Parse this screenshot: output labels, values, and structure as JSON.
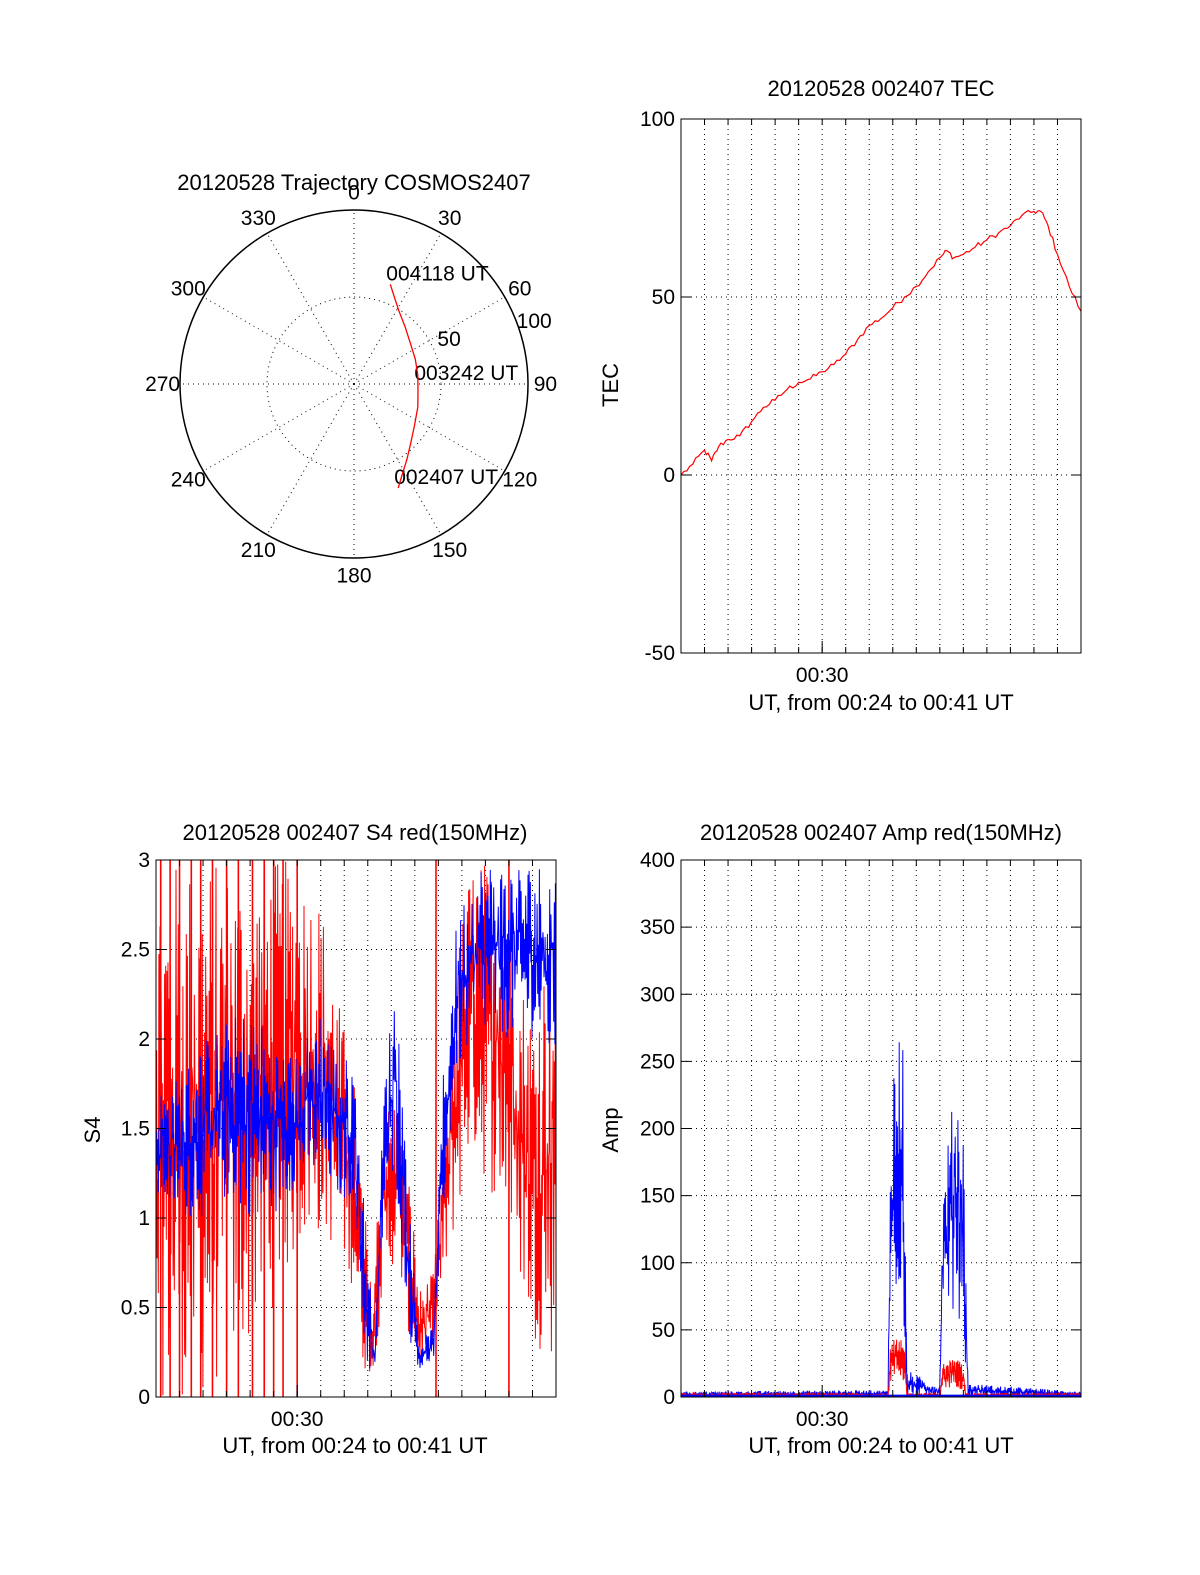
{
  "chart_data": [
    {
      "id": "trajectory",
      "type": "polar",
      "title": "20120528 Trajectory COSMOS2407",
      "angle_labels": [
        "0",
        "30",
        "60",
        "90",
        "120",
        "150",
        "180",
        "210",
        "240",
        "270",
        "300",
        "330"
      ],
      "radial_labels": [
        "50",
        "100"
      ],
      "rmax": 100,
      "grid": true,
      "series": [
        {
          "color": "#ff0000",
          "points": [
            {
              "az": 20,
              "r": 61
            },
            {
              "az": 25,
              "r": 55
            },
            {
              "az": 32,
              "r": 49
            },
            {
              "az": 42,
              "r": 44
            },
            {
              "az": 54,
              "r": 40
            },
            {
              "az": 68,
              "r": 38
            },
            {
              "az": 82,
              "r": 37
            },
            {
              "az": 96,
              "r": 37
            },
            {
              "az": 110,
              "r": 39
            },
            {
              "az": 124,
              "r": 42
            },
            {
              "az": 136,
              "r": 47
            },
            {
              "az": 145,
              "r": 53
            },
            {
              "az": 152,
              "r": 59
            },
            {
              "az": 157,
              "r": 65
            }
          ]
        }
      ],
      "annotations": [
        {
          "text": "004118 UT",
          "az": 20,
          "r": 61
        },
        {
          "text": "003242 UT",
          "az": 90,
          "r": 37
        },
        {
          "text": "002407 UT",
          "az": 157,
          "r": 65
        }
      ]
    },
    {
      "id": "tec",
      "type": "line",
      "title": "20120528 002407 TEC",
      "xlabel": "UT, from 00:24 to 00:41 UT",
      "ylabel": "TEC",
      "xlim": [
        0,
        17
      ],
      "ylim": [
        -50,
        100
      ],
      "yticks": [
        "-50",
        "0",
        "50",
        "100"
      ],
      "xticks": [
        {
          "label": "00:30",
          "value": 6
        }
      ],
      "grid": true,
      "series": [
        {
          "color": "#ff0000",
          "points": [
            [
              0,
              0
            ],
            [
              0.5,
              3
            ],
            [
              1,
              7
            ],
            [
              1.3,
              4
            ],
            [
              1.6,
              8
            ],
            [
              2,
              10
            ],
            [
              2.5,
              11
            ],
            [
              3,
              15
            ],
            [
              3.5,
              19
            ],
            [
              4,
              21
            ],
            [
              4.5,
              24
            ],
            [
              5,
              26
            ],
            [
              5.5,
              27
            ],
            [
              6,
              29
            ],
            [
              6.5,
              31
            ],
            [
              7,
              34
            ],
            [
              7.5,
              38
            ],
            [
              8,
              42
            ],
            [
              8.5,
              44
            ],
            [
              9,
              47
            ],
            [
              9.5,
              50
            ],
            [
              10,
              53
            ],
            [
              10.5,
              57
            ],
            [
              11,
              61
            ],
            [
              11.3,
              63
            ],
            [
              11.6,
              61
            ],
            [
              12,
              62
            ],
            [
              12.5,
              64
            ],
            [
              13,
              66
            ],
            [
              13.5,
              68
            ],
            [
              14,
              70
            ],
            [
              14.5,
              73
            ],
            [
              15,
              74
            ],
            [
              15.3,
              74
            ],
            [
              15.6,
              70
            ],
            [
              16,
              62
            ],
            [
              16.5,
              53
            ],
            [
              17,
              46
            ]
          ]
        }
      ]
    },
    {
      "id": "s4",
      "type": "line",
      "title": "20120528 002407 S4 red(150MHz)",
      "xlabel": "UT, from 00:24 to 00:41 UT",
      "ylabel": "S4",
      "xlim": [
        0,
        17
      ],
      "ylim": [
        0,
        3
      ],
      "yticks": [
        "0",
        "0.5",
        "1",
        "1.5",
        "2",
        "2.5",
        "3"
      ],
      "xticks": [
        {
          "label": "00:30",
          "value": 6
        }
      ],
      "grid": true,
      "series": [
        {
          "color": "#ff0000",
          "envelope": [
            [
              0,
              0,
              3
            ],
            [
              1,
              0,
              3
            ],
            [
              2,
              0,
              3
            ],
            [
              3,
              0.1,
              3
            ],
            [
              4,
              0.3,
              3
            ],
            [
              5,
              0.5,
              3
            ],
            [
              6,
              0.8,
              3
            ],
            [
              7,
              0.9,
              2.8
            ],
            [
              7.8,
              0.8,
              2.2
            ],
            [
              8.4,
              0.6,
              1.8
            ],
            [
              8.8,
              0.15,
              1.2
            ],
            [
              9.2,
              0.12,
              0.5
            ],
            [
              9.6,
              0.5,
              1.6
            ],
            [
              10.2,
              0.8,
              1.7
            ],
            [
              10.8,
              0.3,
              1.2
            ],
            [
              11.2,
              0.15,
              0.6
            ],
            [
              11.8,
              0.3,
              0.7
            ],
            [
              12.2,
              0.6,
              1.4
            ],
            [
              12.8,
              1.0,
              2.5
            ],
            [
              13.4,
              1.4,
              3
            ],
            [
              14,
              1.2,
              3
            ],
            [
              14.8,
              1.0,
              3
            ],
            [
              15.4,
              0.7,
              2.4
            ],
            [
              16,
              0.3,
              2.2
            ],
            [
              17,
              0.2,
              2.8
            ]
          ],
          "spikes": [
            0.2,
            0.6,
            1.0,
            1.5,
            1.9,
            2.4,
            3.0,
            3.5,
            4.1,
            4.6,
            5.0,
            5.4,
            6.0,
            11.9,
            15.0
          ]
        },
        {
          "color": "#0000ff",
          "envelope": [
            [
              0,
              1.1,
              1.7
            ],
            [
              1,
              1.0,
              1.8
            ],
            [
              2,
              1.0,
              2.0
            ],
            [
              3,
              1.1,
              2.1
            ],
            [
              4,
              1.0,
              2.2
            ],
            [
              5,
              1.0,
              2.0
            ],
            [
              6,
              1.2,
              1.9
            ],
            [
              7,
              1.2,
              2.2
            ],
            [
              7.8,
              1.1,
              1.9
            ],
            [
              8.4,
              1.1,
              1.9
            ],
            [
              8.9,
              0.15,
              1.0
            ],
            [
              9.3,
              0.12,
              0.3
            ],
            [
              9.7,
              1.0,
              1.8
            ],
            [
              10.2,
              1.2,
              2.4
            ],
            [
              10.8,
              0.3,
              1.0
            ],
            [
              11.2,
              0.15,
              0.3
            ],
            [
              11.8,
              0.2,
              0.4
            ],
            [
              12.2,
              1.0,
              1.8
            ],
            [
              12.8,
              1.8,
              2.7
            ],
            [
              13.6,
              2.0,
              3
            ],
            [
              14.4,
              2.0,
              3
            ],
            [
              15.2,
              2.0,
              3
            ],
            [
              16,
              2.0,
              3
            ],
            [
              17,
              1.8,
              3
            ]
          ]
        }
      ]
    },
    {
      "id": "amp",
      "type": "line",
      "title": "20120528 002407 Amp red(150MHz)",
      "xlabel": "UT, from 00:24 to 00:41 UT",
      "ylabel": "Amp",
      "xlim": [
        0,
        17
      ],
      "ylim": [
        0,
        400
      ],
      "yticks": [
        "0",
        "50",
        "100",
        "150",
        "200",
        "250",
        "300",
        "350",
        "400"
      ],
      "xticks": [
        {
          "label": "00:30",
          "value": 6
        }
      ],
      "grid": true,
      "series": [
        {
          "color": "#ff0000",
          "envelope": [
            [
              0,
              0,
              3
            ],
            [
              8.8,
              0,
              3
            ],
            [
              8.9,
              10,
              40
            ],
            [
              9.2,
              15,
              45
            ],
            [
              9.5,
              10,
              40
            ],
            [
              9.6,
              0,
              3
            ],
            [
              11.0,
              0,
              3
            ],
            [
              11.1,
              5,
              25
            ],
            [
              11.6,
              8,
              30
            ],
            [
              12.0,
              5,
              25
            ],
            [
              12.1,
              0,
              3
            ],
            [
              17,
              0,
              3
            ]
          ]
        },
        {
          "color": "#0000ff",
          "envelope": [
            [
              0,
              0,
              4
            ],
            [
              7,
              0,
              5
            ],
            [
              8.8,
              0,
              5
            ],
            [
              8.9,
              40,
              200
            ],
            [
              9.0,
              60,
              270
            ],
            [
              9.2,
              80,
              250
            ],
            [
              9.4,
              70,
              320
            ],
            [
              9.6,
              0,
              20
            ],
            [
              11.0,
              0,
              8
            ],
            [
              11.1,
              40,
              150
            ],
            [
              11.4,
              60,
              200
            ],
            [
              11.7,
              70,
              240
            ],
            [
              12.0,
              40,
              200
            ],
            [
              12.2,
              0,
              10
            ],
            [
              17,
              0,
              4
            ]
          ]
        }
      ]
    }
  ]
}
